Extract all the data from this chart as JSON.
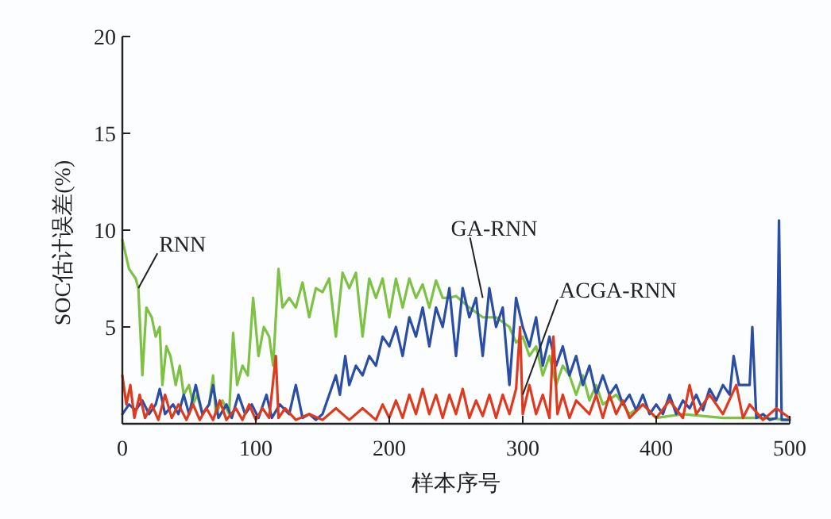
{
  "chart_data": {
    "type": "line",
    "xlabel": "样本序号",
    "ylabel": "SOC估计误差(%)",
    "xlim": [
      0,
      500
    ],
    "xticks": [
      0,
      100,
      200,
      300,
      400,
      500
    ],
    "ylim": [
      0,
      20
    ],
    "yticks": [
      5,
      10,
      15,
      20
    ],
    "grid": false,
    "marker": "none",
    "line_style": "solid",
    "series": [
      {
        "color": "#7dc242",
        "x": [
          0,
          5,
          10,
          12,
          15,
          18,
          22,
          25,
          28,
          30,
          33,
          36,
          40,
          43,
          46,
          50,
          53,
          56,
          60,
          65,
          68,
          70,
          75,
          80,
          83,
          86,
          90,
          94,
          98,
          102,
          106,
          110,
          113,
          117,
          120,
          125,
          130,
          135,
          140,
          145,
          150,
          155,
          160,
          165,
          170,
          175,
          180,
          185,
          190,
          195,
          200,
          205,
          210,
          215,
          220,
          225,
          230,
          235,
          240,
          245,
          250,
          260,
          270,
          280,
          290,
          295,
          300,
          305,
          310,
          315,
          320,
          325,
          330,
          335,
          340,
          345,
          350,
          355,
          360,
          370,
          380,
          390,
          400,
          420,
          450,
          480,
          500
        ],
        "values": [
          9.5,
          8,
          7.5,
          7,
          2.5,
          6,
          5.5,
          4.5,
          5,
          2,
          4,
          3.5,
          2,
          3,
          1.5,
          2,
          1,
          1.5,
          0.5,
          1,
          2.5,
          0.5,
          1.2,
          0.5,
          4.7,
          2,
          3,
          2.5,
          6.5,
          3.5,
          5,
          4.5,
          3,
          8,
          6,
          6.5,
          6,
          7.3,
          5.5,
          7,
          6.8,
          7.5,
          4.5,
          7.8,
          7,
          7.8,
          4.5,
          7.5,
          6.5,
          7.5,
          5.5,
          7.5,
          6,
          7.5,
          6.5,
          7.2,
          6,
          7.4,
          6.5,
          6.5,
          6.6,
          6,
          5.5,
          5.5,
          5,
          4.2,
          4.5,
          3.5,
          4,
          2.5,
          3.5,
          2,
          3,
          2.5,
          1.5,
          2.5,
          1.2,
          2,
          1,
          1.5,
          0.5,
          1,
          0.3,
          0.5,
          0.3,
          0.3,
          0.2
        ]
      },
      {
        "color": "#2a4ea6",
        "x": [
          0,
          5,
          10,
          15,
          20,
          25,
          28,
          32,
          38,
          42,
          46,
          50,
          55,
          60,
          65,
          68,
          72,
          78,
          82,
          87,
          92,
          97,
          102,
          108,
          112,
          118,
          125,
          130,
          135,
          140,
          145,
          150,
          155,
          160,
          163,
          167,
          170,
          175,
          180,
          185,
          190,
          195,
          200,
          205,
          210,
          215,
          220,
          225,
          230,
          235,
          240,
          245,
          250,
          255,
          260,
          265,
          270,
          275,
          280,
          285,
          290,
          295,
          300,
          305,
          310,
          315,
          320,
          325,
          330,
          335,
          340,
          345,
          350,
          355,
          360,
          365,
          370,
          375,
          380,
          385,
          390,
          395,
          400,
          405,
          410,
          415,
          420,
          425,
          430,
          435,
          440,
          445,
          450,
          455,
          458,
          462,
          470,
          472,
          475,
          480,
          485,
          490,
          492,
          494,
          500
        ],
        "values": [
          0.5,
          1,
          0.7,
          1.2,
          0.5,
          1,
          1.8,
          0.5,
          1,
          0.5,
          1.5,
          0.5,
          2,
          0.5,
          1,
          2,
          0.3,
          1,
          0.3,
          1.5,
          0.5,
          1,
          0.3,
          1.5,
          0.3,
          1,
          0.5,
          2,
          0.3,
          0.5,
          0.2,
          0.5,
          1.5,
          2.5,
          1.5,
          3.5,
          2,
          3,
          2.5,
          3.5,
          3,
          4.5,
          4,
          5,
          3.5,
          5.5,
          4.5,
          6,
          4,
          6,
          5,
          7,
          3.5,
          7,
          5.5,
          6.5,
          3.5,
          7,
          5,
          6,
          2,
          6.5,
          5,
          4,
          5.5,
          3,
          4.5,
          3,
          4,
          2.5,
          3.5,
          2,
          3,
          1.5,
          2.5,
          1.5,
          2,
          1,
          1.5,
          0.7,
          1.5,
          0.5,
          1,
          0.5,
          1.5,
          0.5,
          1.2,
          0.8,
          1.5,
          0.7,
          1.8,
          1.2,
          2,
          1.5,
          3.5,
          2,
          2,
          5,
          0.3,
          0.5,
          0.2,
          0.3,
          10.5,
          0.2,
          0.2
        ]
      },
      {
        "color": "#e03a1e",
        "x": [
          0,
          3,
          6,
          9,
          13,
          17,
          22,
          27,
          32,
          37,
          42,
          48,
          53,
          58,
          63,
          68,
          73,
          78,
          85,
          90,
          95,
          100,
          105,
          110,
          115,
          117,
          122,
          130,
          140,
          150,
          160,
          170,
          180,
          190,
          195,
          200,
          205,
          210,
          215,
          220,
          225,
          230,
          235,
          240,
          245,
          250,
          255,
          260,
          265,
          270,
          275,
          280,
          285,
          290,
          295,
          298,
          300,
          305,
          310,
          315,
          320,
          323,
          326,
          330,
          335,
          340,
          350,
          355,
          360,
          365,
          370,
          375,
          380,
          390,
          400,
          410,
          420,
          425,
          430,
          440,
          450,
          460,
          465,
          470,
          480,
          490,
          500
        ],
        "values": [
          2.5,
          1,
          2,
          0.3,
          1.5,
          0.3,
          1,
          0.2,
          1.5,
          0.3,
          1,
          0.2,
          1,
          0.2,
          0.8,
          0.2,
          1.2,
          0.2,
          0.8,
          0.2,
          1,
          0.2,
          0.8,
          0.3,
          3.5,
          0.3,
          0.8,
          0.2,
          0.5,
          0.2,
          0.8,
          0.2,
          0.8,
          0.2,
          1,
          0.3,
          1.2,
          0.3,
          1.5,
          0.5,
          1.8,
          0.5,
          1.5,
          0.3,
          1.5,
          0.5,
          1.8,
          0.3,
          1.2,
          0.4,
          1.5,
          0.3,
          1.5,
          0.5,
          1.8,
          5,
          0.5,
          2,
          0.5,
          1.5,
          0.3,
          4.5,
          0.5,
          1.5,
          0.3,
          1.2,
          0.5,
          1.5,
          0.3,
          1.5,
          0.5,
          1.2,
          0.3,
          1,
          0.3,
          1.2,
          0.3,
          2,
          0.5,
          1.5,
          0.5,
          2,
          0.3,
          1,
          0.2,
          0.8,
          0.3
        ]
      }
    ],
    "annotations": [
      {
        "text": "RNN",
        "x": 12,
        "y": 7
      },
      {
        "text": "GA-RNN",
        "x": 270,
        "y": 6.5
      },
      {
        "text": "ACGA-RNN",
        "x": 300,
        "y": 1.5
      }
    ]
  }
}
